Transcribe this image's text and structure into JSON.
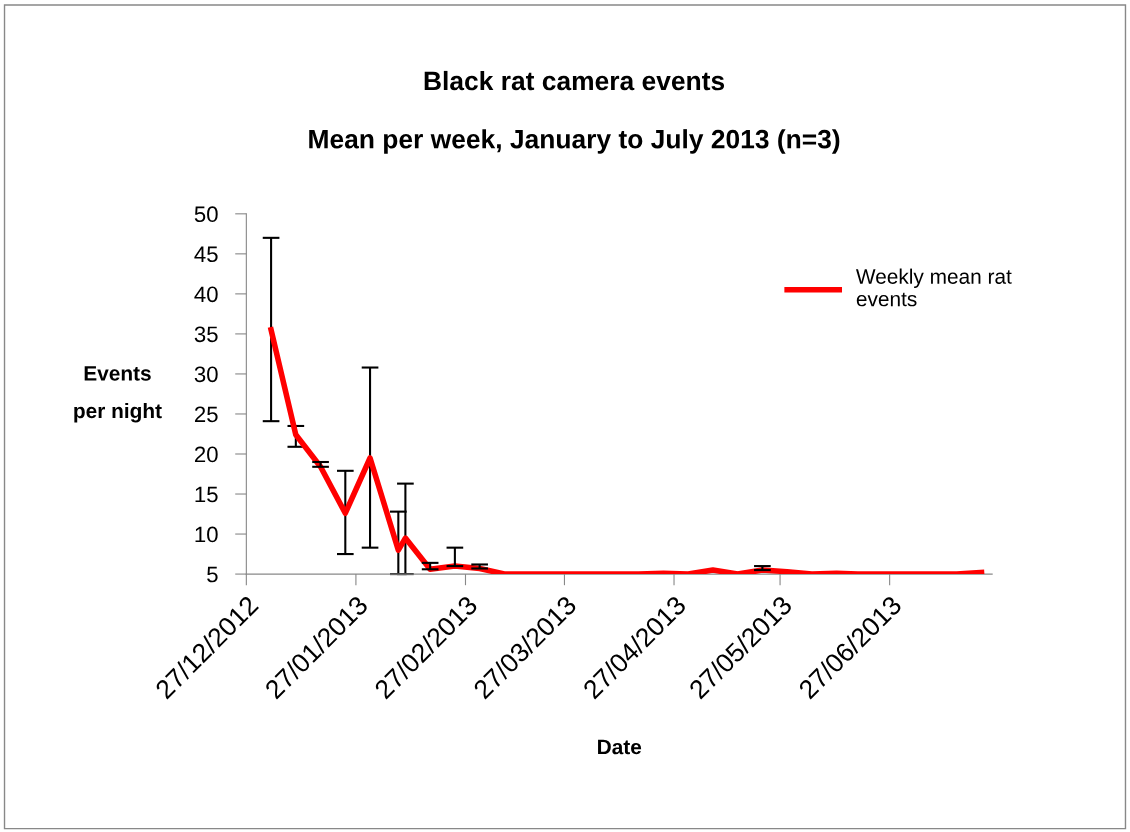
{
  "chart_data": {
    "type": "line",
    "title": "Black rat camera events",
    "subtitle": "Mean per week, January to July 2013 (n=3)",
    "xlabel": "Date",
    "ylabel": "Events\nper night",
    "x": [
      "2013-01-03",
      "2013-01-10",
      "2013-01-17",
      "2013-01-24",
      "2013-01-31",
      "2013-02-08",
      "2013-02-10",
      "2013-02-17",
      "2013-02-24",
      "2013-03-03",
      "2013-03-10",
      "2013-03-17",
      "2013-03-24",
      "2013-03-31",
      "2013-04-07",
      "2013-04-17",
      "2013-04-24",
      "2013-05-01",
      "2013-05-08",
      "2013-05-15",
      "2013-05-22",
      "2013-05-29",
      "2013-06-05",
      "2013-06-12",
      "2013-06-18",
      "2013-06-26",
      "2013-07-02",
      "2013-07-09",
      "2013-07-16",
      "2013-07-23"
    ],
    "series": [
      {
        "name": "Weekly mean rat events",
        "color": "#ff0000",
        "values": [
          35.5,
          22.4,
          18.4,
          12.6,
          19.5,
          8.0,
          9.5,
          5.6,
          6.0,
          5.7,
          5.0,
          5.0,
          5.0,
          5.0,
          5.0,
          5.0,
          5.1,
          5.0,
          5.5,
          5.0,
          5.5,
          5.3,
          5.0,
          5.1,
          5.0,
          5.0,
          5.0,
          5.0,
          5.0,
          5.2
        ],
        "errors": [
          [
            24.1,
            47
          ],
          [
            20.9,
            23.5
          ],
          [
            18.4,
            19.0
          ],
          [
            7.5,
            17.9
          ],
          [
            8.3,
            30.8
          ],
          [
            5,
            12.8
          ],
          [
            5,
            16.3
          ],
          [
            5.6,
            6.4
          ],
          [
            6.0,
            8.3
          ],
          [
            5.7,
            6.2
          ],
          null,
          null,
          null,
          null,
          null,
          null,
          null,
          null,
          null,
          null,
          [
            5.5,
            6.0
          ],
          null,
          null,
          null,
          null,
          null,
          null,
          null,
          null,
          null
        ]
      }
    ],
    "xlim": [
      "2012-12-27",
      "2013-07-26"
    ],
    "xticks": [
      {
        "value": "2012-12-27",
        "label": "27/12/2012"
      },
      {
        "value": "2013-01-27",
        "label": "27/01/2013"
      },
      {
        "value": "2013-02-27",
        "label": "27/02/2013"
      },
      {
        "value": "2013-03-27",
        "label": "27/03/2013"
      },
      {
        "value": "2013-04-27",
        "label": "27/04/2013"
      },
      {
        "value": "2013-05-27",
        "label": "27/05/2013"
      },
      {
        "value": "2013-06-27",
        "label": "27/06/2013"
      }
    ],
    "ylim": [
      5,
      50
    ],
    "yticks": [
      5,
      10,
      15,
      20,
      25,
      30,
      35,
      40,
      45,
      50
    ],
    "grid": false,
    "legend": "top right",
    "marker": "none",
    "line_style": "solid"
  }
}
